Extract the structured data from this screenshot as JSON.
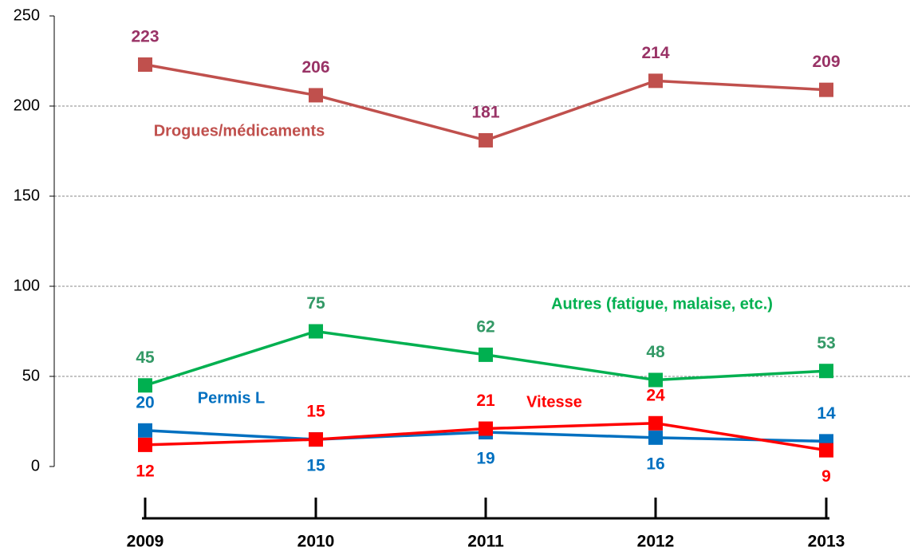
{
  "chart_data": {
    "type": "line",
    "categories": [
      "2009",
      "2010",
      "2011",
      "2012",
      "2013"
    ],
    "series": [
      {
        "name": "Drogues/médicaments",
        "color": "#c0504d",
        "label_color": "#993366",
        "values": [
          223,
          206,
          181,
          214,
          209
        ]
      },
      {
        "name": "Autres (fatigue, malaise, etc.)",
        "color": "#00b050",
        "label_color": "#339966",
        "values": [
          45,
          75,
          62,
          48,
          53
        ]
      },
      {
        "name": "Permis L",
        "color": "#0070c0",
        "label_color": "#0070c0",
        "values": [
          20,
          15,
          19,
          16,
          14
        ]
      },
      {
        "name": "Vitesse",
        "color": "#ff0000",
        "label_color": "#ff0000",
        "values": [
          12,
          15,
          21,
          24,
          9
        ]
      }
    ],
    "ylim": [
      0,
      250
    ],
    "yticks": [
      0,
      50,
      100,
      150,
      200,
      250
    ],
    "grid": true
  }
}
